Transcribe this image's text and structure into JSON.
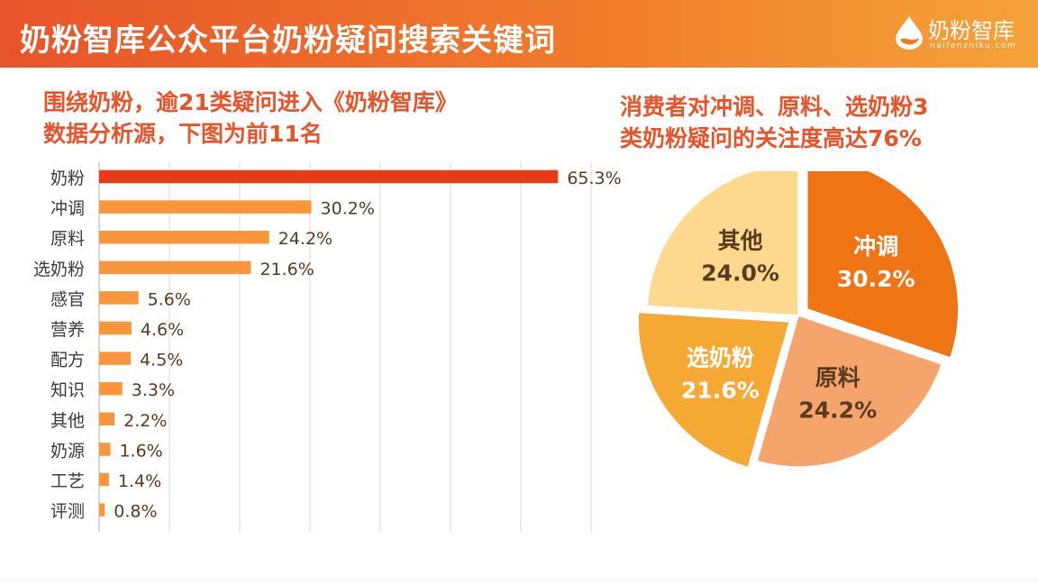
{
  "header": {
    "title": "奶粉智库公众平台奶粉疑问搜索关键词",
    "logo_name": "奶粉智库",
    "logo_domain": "naifenzhiku.com"
  },
  "left_headline": {
    "line1": "围绕奶粉，逾21类疑问进入《奶粉智库》",
    "line2": "数据分析源，下图为前11名"
  },
  "right_headline": {
    "line1": "消费者对冲调、原料、选奶粉3",
    "line2": "类奶粉疑问的关注度高达76%"
  },
  "colors": {
    "banner_start": "#e8542a",
    "banner_end": "#f5a23a",
    "accent": "#e8542a",
    "bar_top": "#e83a17",
    "bar": "#f7963b",
    "label_text": "#3a3a3a",
    "value_text": "#5a3a20",
    "pie_dark": "#ef7414",
    "pie_light_orange": "#f5a56b",
    "pie_mid": "#f6a834",
    "pie_pale": "#fcd98e"
  },
  "chart_data": [
    {
      "type": "bar",
      "orientation": "horizontal",
      "categories": [
        "奶粉",
        "冲调",
        "原料",
        "选奶粉",
        "感官",
        "营养",
        "配方",
        "知识",
        "其他",
        "奶源",
        "工艺",
        "评测"
      ],
      "values": [
        65.3,
        30.2,
        24.2,
        21.6,
        5.6,
        4.6,
        4.5,
        3.3,
        2.2,
        1.6,
        1.4,
        0.8
      ],
      "value_labels": [
        "65.3%",
        "30.2%",
        "24.2%",
        "21.6%",
        "5.6%",
        "4.6%",
        "4.5%",
        "3.3%",
        "2.2%",
        "1.6%",
        "1.4%",
        "0.8%"
      ],
      "unit": "%",
      "xlim": [
        0,
        70
      ],
      "grid": true,
      "highlight_index": 0
    },
    {
      "type": "pie",
      "slices": [
        {
          "label": "冲调",
          "value": 30.2,
          "value_label": "30.2%",
          "color": "#ef7414",
          "exploded": true
        },
        {
          "label": "原料",
          "value": 24.2,
          "value_label": "24.2%",
          "color": "#f5a56b",
          "exploded": false
        },
        {
          "label": "选奶粉",
          "value": 21.6,
          "value_label": "21.6%",
          "color": "#f6a834",
          "exploded": true
        },
        {
          "label": "其他",
          "value": 24.0,
          "value_label": "24.0%",
          "color": "#fcd98e",
          "exploded": false
        }
      ],
      "start_angle": "12 o'clock",
      "direction": "clockwise"
    }
  ]
}
